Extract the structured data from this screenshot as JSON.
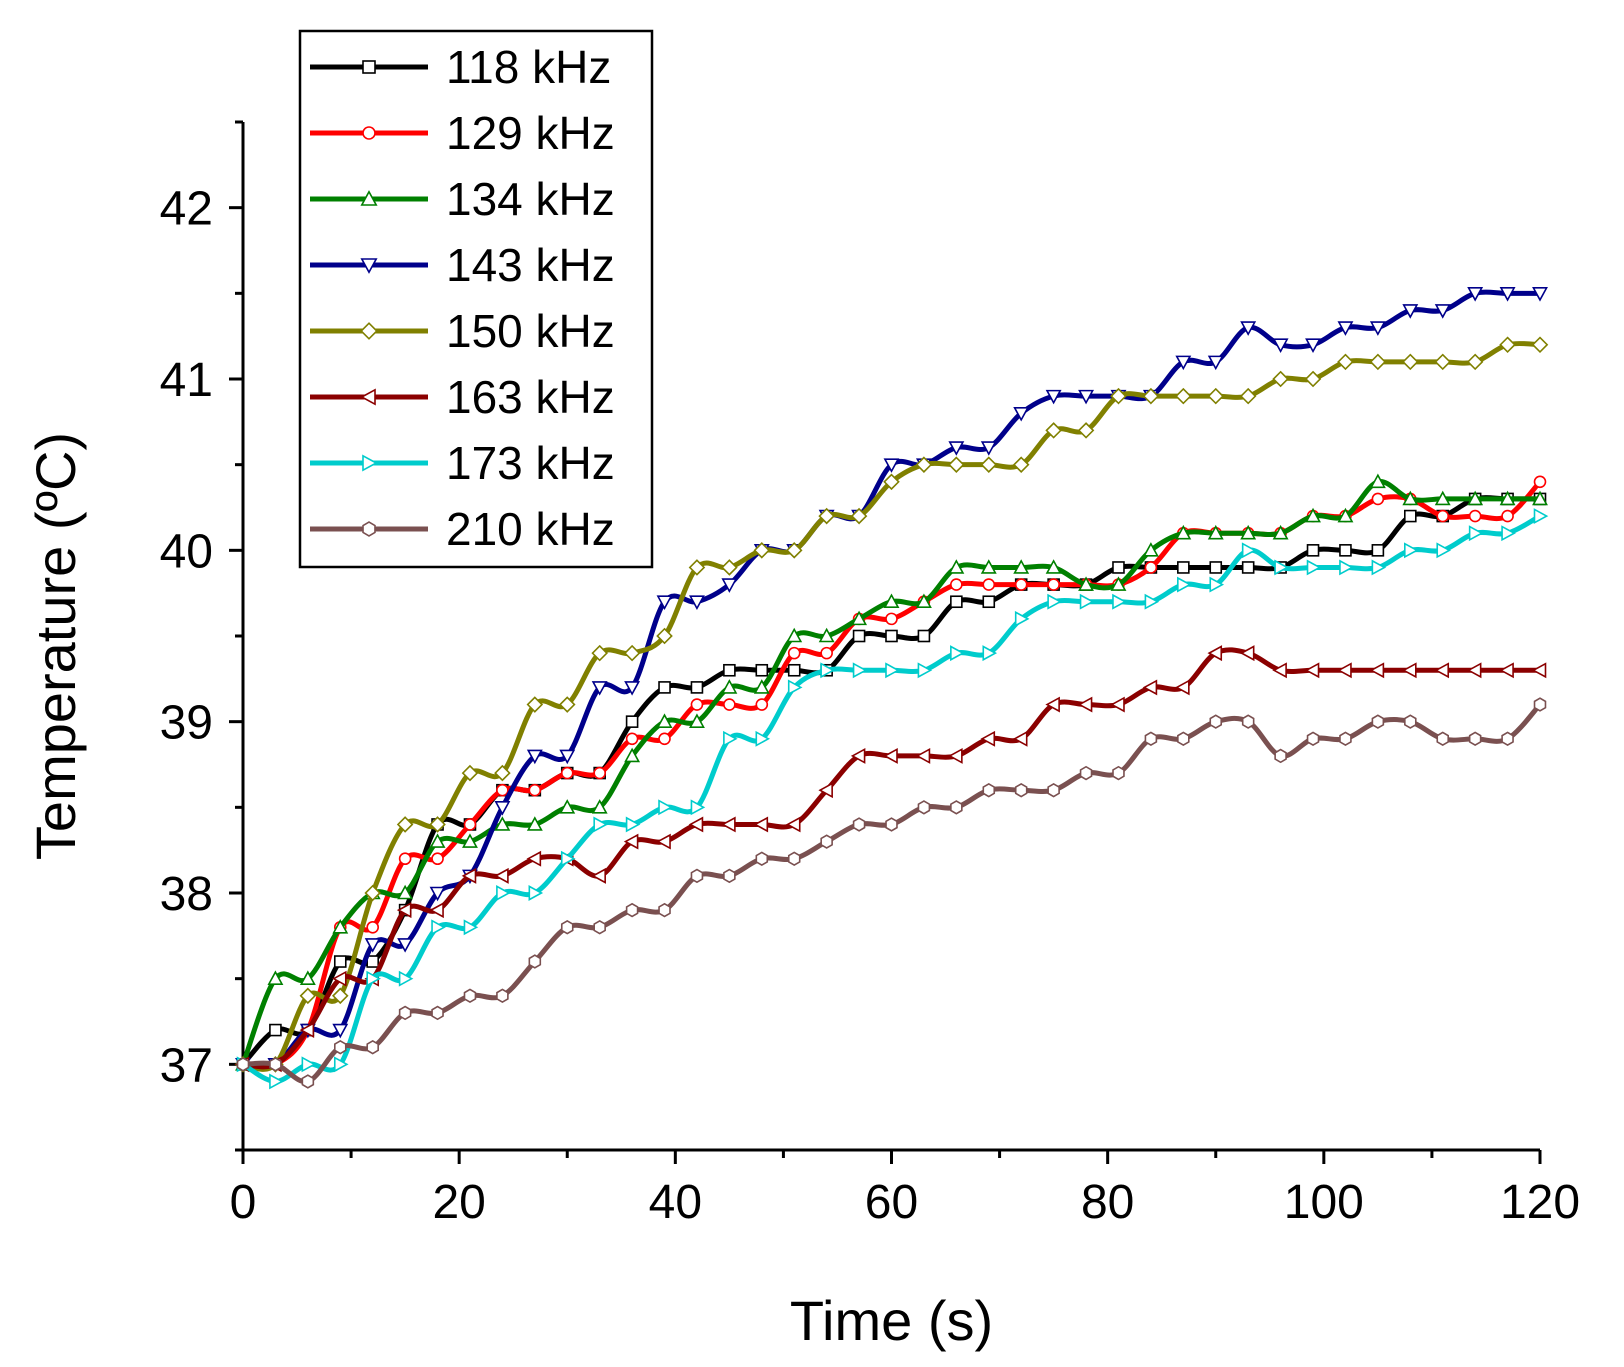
{
  "chart_data": {
    "type": "line",
    "title": "",
    "xlabel": "Time (s)",
    "ylabel": "Temperature (ºC)",
    "xlim": [
      0,
      120
    ],
    "ylim": [
      36.5,
      42.5
    ],
    "xticks": [
      "0",
      "20",
      "40",
      "60",
      "80",
      "100",
      "120"
    ],
    "yticks": [
      "37",
      "38",
      "39",
      "40",
      "41",
      "42"
    ],
    "grid": false,
    "legend_position": "top-left",
    "x": [
      0,
      3,
      6,
      9,
      12,
      15,
      18,
      21,
      24,
      27,
      30,
      33,
      36,
      39,
      42,
      45,
      48,
      51,
      54,
      57,
      60,
      63,
      66,
      69,
      72,
      75,
      78,
      81,
      84,
      87,
      90,
      93,
      96,
      99,
      102,
      105,
      108,
      111,
      114,
      117,
      120
    ],
    "series": [
      {
        "name": "118 kHz",
        "color": "#000000",
        "marker": "square",
        "values": [
          37.0,
          37.2,
          37.2,
          37.6,
          37.6,
          37.9,
          38.4,
          38.4,
          38.6,
          38.6,
          38.7,
          38.7,
          39.0,
          39.2,
          39.2,
          39.3,
          39.3,
          39.3,
          39.3,
          39.5,
          39.5,
          39.5,
          39.7,
          39.7,
          39.8,
          39.8,
          39.8,
          39.9,
          39.9,
          39.9,
          39.9,
          39.9,
          39.9,
          40.0,
          40.0,
          40.0,
          40.2,
          40.2,
          40.3,
          40.3,
          40.3
        ]
      },
      {
        "name": "129 kHz",
        "color": "#ff0000",
        "marker": "circle",
        "values": [
          37.0,
          37.0,
          37.2,
          37.8,
          37.8,
          38.2,
          38.2,
          38.4,
          38.6,
          38.6,
          38.7,
          38.7,
          38.9,
          38.9,
          39.1,
          39.1,
          39.1,
          39.4,
          39.4,
          39.6,
          39.6,
          39.7,
          39.8,
          39.8,
          39.8,
          39.8,
          39.8,
          39.8,
          39.9,
          40.1,
          40.1,
          40.1,
          40.1,
          40.2,
          40.2,
          40.3,
          40.3,
          40.2,
          40.2,
          40.2,
          40.4
        ]
      },
      {
        "name": "134 kHz",
        "color": "#008000",
        "marker": "triangle-up",
        "values": [
          37.0,
          37.5,
          37.5,
          37.8,
          38.0,
          38.0,
          38.3,
          38.3,
          38.4,
          38.4,
          38.5,
          38.5,
          38.8,
          39.0,
          39.0,
          39.2,
          39.2,
          39.5,
          39.5,
          39.6,
          39.7,
          39.7,
          39.9,
          39.9,
          39.9,
          39.9,
          39.8,
          39.8,
          40.0,
          40.1,
          40.1,
          40.1,
          40.1,
          40.2,
          40.2,
          40.4,
          40.3,
          40.3,
          40.3,
          40.3,
          40.3
        ]
      },
      {
        "name": "143 kHz",
        "color": "#00008b",
        "marker": "triangle-down",
        "values": [
          37.0,
          37.0,
          37.2,
          37.2,
          37.7,
          37.7,
          38.0,
          38.1,
          38.5,
          38.8,
          38.8,
          39.2,
          39.2,
          39.7,
          39.7,
          39.8,
          40.0,
          40.0,
          40.2,
          40.2,
          40.5,
          40.5,
          40.6,
          40.6,
          40.8,
          40.9,
          40.9,
          40.9,
          40.9,
          41.1,
          41.1,
          41.3,
          41.2,
          41.2,
          41.3,
          41.3,
          41.4,
          41.4,
          41.5,
          41.5,
          41.5
        ]
      },
      {
        "name": "150 kHz",
        "color": "#808000",
        "marker": "diamond",
        "values": [
          37.0,
          37.0,
          37.4,
          37.4,
          38.0,
          38.4,
          38.4,
          38.7,
          38.7,
          39.1,
          39.1,
          39.4,
          39.4,
          39.5,
          39.9,
          39.9,
          40.0,
          40.0,
          40.2,
          40.2,
          40.4,
          40.5,
          40.5,
          40.5,
          40.5,
          40.7,
          40.7,
          40.9,
          40.9,
          40.9,
          40.9,
          40.9,
          41.0,
          41.0,
          41.1,
          41.1,
          41.1,
          41.1,
          41.1,
          41.2,
          41.2
        ]
      },
      {
        "name": "163 kHz",
        "color": "#8b0000",
        "marker": "triangle-left",
        "values": [
          37.0,
          37.0,
          37.2,
          37.5,
          37.5,
          37.9,
          37.9,
          38.1,
          38.1,
          38.2,
          38.2,
          38.1,
          38.3,
          38.3,
          38.4,
          38.4,
          38.4,
          38.4,
          38.6,
          38.8,
          38.8,
          38.8,
          38.8,
          38.9,
          38.9,
          39.1,
          39.1,
          39.1,
          39.2,
          39.2,
          39.4,
          39.4,
          39.3,
          39.3,
          39.3,
          39.3,
          39.3,
          39.3,
          39.3,
          39.3,
          39.3
        ]
      },
      {
        "name": "173 kHz",
        "color": "#00cccc",
        "marker": "triangle-right",
        "values": [
          37.0,
          36.9,
          37.0,
          37.0,
          37.5,
          37.5,
          37.8,
          37.8,
          38.0,
          38.0,
          38.2,
          38.4,
          38.4,
          38.5,
          38.5,
          38.9,
          38.9,
          39.2,
          39.3,
          39.3,
          39.3,
          39.3,
          39.4,
          39.4,
          39.6,
          39.7,
          39.7,
          39.7,
          39.7,
          39.8,
          39.8,
          40.0,
          39.9,
          39.9,
          39.9,
          39.9,
          40.0,
          40.0,
          40.1,
          40.1,
          40.2
        ]
      },
      {
        "name": "210 kHz",
        "color": "#7a5050",
        "marker": "hexagon",
        "values": [
          37.0,
          37.0,
          36.9,
          37.1,
          37.1,
          37.3,
          37.3,
          37.4,
          37.4,
          37.6,
          37.8,
          37.8,
          37.9,
          37.9,
          38.1,
          38.1,
          38.2,
          38.2,
          38.3,
          38.4,
          38.4,
          38.5,
          38.5,
          38.6,
          38.6,
          38.6,
          38.7,
          38.7,
          38.9,
          38.9,
          39.0,
          39.0,
          38.8,
          38.9,
          38.9,
          39.0,
          39.0,
          38.9,
          38.9,
          38.9,
          39.1
        ]
      }
    ]
  }
}
